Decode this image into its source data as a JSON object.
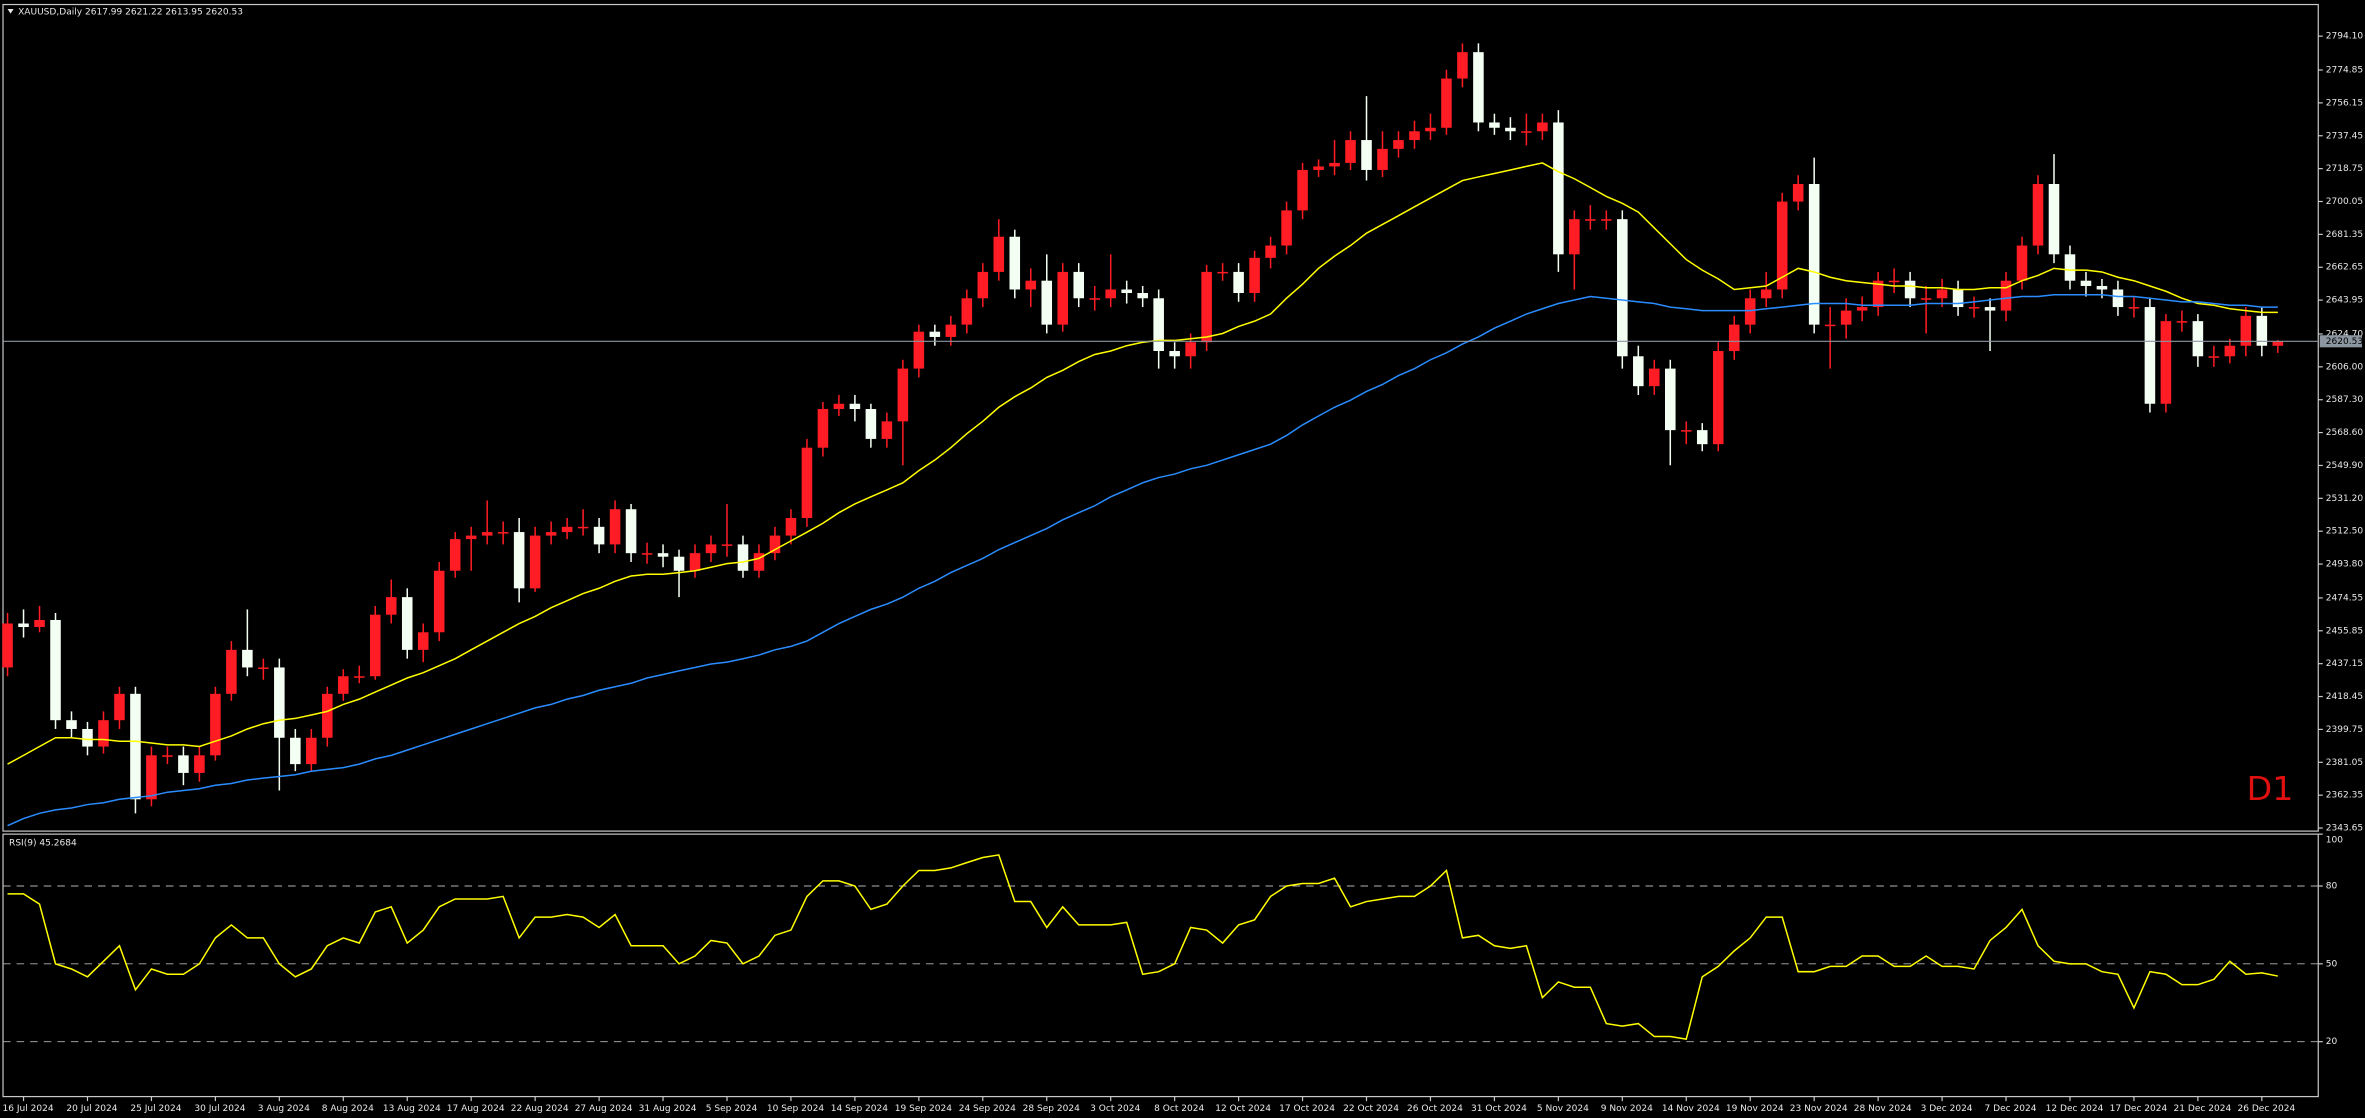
{
  "chart_data": [
    {
      "type": "candlestick",
      "title": "XAUUSD,Daily  2617.99 2621.22 2613.95 2620.53",
      "annotation": "D1",
      "categories": [
        null,
        "16 Jul 2024",
        null,
        null,
        null,
        "20 Jul 2024",
        null,
        null,
        null,
        "25 Jul 2024",
        null,
        null,
        null,
        "30 Jul 2024",
        null,
        null,
        null,
        "3 Aug 2024",
        null,
        null,
        null,
        "8 Aug 2024",
        null,
        null,
        null,
        "13 Aug 2024",
        null,
        null,
        null,
        "17 Aug 2024",
        null,
        null,
        null,
        "22 Aug 2024",
        null,
        null,
        null,
        "27 Aug 2024",
        null,
        null,
        null,
        "31 Aug 2024",
        null,
        null,
        null,
        "5 Sep 2024",
        null,
        null,
        null,
        "10 Sep 2024",
        null,
        null,
        null,
        "14 Sep 2024",
        null,
        null,
        null,
        "19 Sep 2024",
        null,
        null,
        null,
        "24 Sep 2024",
        null,
        null,
        null,
        "28 Sep 2024",
        null,
        null,
        null,
        "3 Oct 2024",
        null,
        null,
        null,
        "8 Oct 2024",
        null,
        null,
        null,
        "12 Oct 2024",
        null,
        null,
        null,
        "17 Oct 2024",
        null,
        null,
        null,
        "22 Oct 2024",
        null,
        null,
        null,
        "26 Oct 2024",
        null,
        null,
        null,
        "31 Oct 2024",
        null,
        null,
        null,
        "5 Nov 2024",
        null,
        null,
        null,
        "9 Nov 2024",
        null,
        null,
        null,
        "14 Nov 2024",
        null,
        null,
        null,
        "19 Nov 2024",
        null,
        null,
        null,
        "23 Nov 2024",
        null,
        null,
        null,
        "28 Nov 2024",
        null,
        null,
        null,
        "3 Dec 2024",
        null,
        null,
        null,
        "7 Dec 2024",
        null,
        null,
        null,
        "12 Dec 2024",
        null,
        null,
        null,
        "17 Dec 2024",
        null,
        null,
        null,
        "21 Dec 2024",
        null,
        null,
        null,
        "26 Dec 2024",
        null
      ],
      "open": [
        2435,
        2460,
        2458,
        2462,
        2405,
        2400,
        2390,
        2405,
        2420,
        2360,
        2385,
        2385,
        2375,
        2385,
        2420,
        2445,
        2435,
        2435,
        2395,
        2380,
        2395,
        2420,
        2430,
        2430,
        2465,
        2475,
        2445,
        2455,
        2490,
        2508,
        2510,
        2512,
        2512,
        2480,
        2510,
        2512,
        2515,
        2515,
        2505,
        2525,
        2500,
        2500,
        2498,
        2490,
        2500,
        2505,
        2505,
        2490,
        2500,
        2510,
        2520,
        2560,
        2582,
        2585,
        2582,
        2565,
        2575,
        2605,
        2626,
        2623,
        2630,
        2645,
        2660,
        2680,
        2650,
        2655,
        2630,
        2660,
        2645,
        2645,
        2650,
        2648,
        2645,
        2615,
        2612,
        2620,
        2660,
        2660,
        2648,
        2668,
        2675,
        2695,
        2718,
        2720,
        2722,
        2735,
        2718,
        2730,
        2735,
        2740,
        2742,
        2770,
        2785,
        2745,
        2742,
        2740,
        2740,
        2745,
        2670,
        2690,
        2690,
        2690,
        2612,
        2595,
        2605,
        2570,
        2570,
        2562,
        2615,
        2630,
        2645,
        2650,
        2700,
        2710,
        2630,
        2630,
        2638,
        2640,
        2655,
        2655,
        2645,
        2645,
        2650,
        2640,
        2640,
        2638,
        2655,
        2675,
        2710,
        2670,
        2655,
        2652,
        2650,
        2640,
        2640,
        2585,
        2632,
        2632,
        2612,
        2612,
        2618,
        2635,
        2617.99
      ],
      "high": [
        2466,
        2468,
        2470,
        2466,
        2410,
        2404,
        2410,
        2424,
        2424,
        2390,
        2390,
        2390,
        2390,
        2424,
        2450,
        2468,
        2440,
        2440,
        2400,
        2400,
        2424,
        2434,
        2436,
        2470,
        2485,
        2480,
        2460,
        2495,
        2512,
        2515,
        2530,
        2518,
        2520,
        2515,
        2518,
        2520,
        2525,
        2520,
        2530,
        2528,
        2506,
        2505,
        2502,
        2505,
        2510,
        2528,
        2510,
        2505,
        2515,
        2525,
        2565,
        2586,
        2590,
        2590,
        2585,
        2580,
        2610,
        2630,
        2630,
        2635,
        2650,
        2665,
        2690,
        2684,
        2662,
        2670,
        2665,
        2665,
        2652,
        2670,
        2655,
        2652,
        2650,
        2620,
        2625,
        2664,
        2665,
        2665,
        2672,
        2680,
        2700,
        2722,
        2724,
        2735,
        2740,
        2760,
        2740,
        2740,
        2746,
        2750,
        2775,
        2790,
        2790,
        2750,
        2748,
        2750,
        2750,
        2752,
        2695,
        2698,
        2695,
        2695,
        2618,
        2610,
        2610,
        2575,
        2574,
        2620,
        2635,
        2650,
        2660,
        2705,
        2715,
        2725,
        2640,
        2645,
        2646,
        2660,
        2662,
        2660,
        2652,
        2656,
        2655,
        2646,
        2645,
        2660,
        2680,
        2715,
        2727,
        2675,
        2660,
        2656,
        2655,
        2646,
        2645,
        2636,
        2638,
        2636,
        2618,
        2622,
        2640,
        2640,
        2621.22
      ],
      "low": [
        2430,
        2452,
        2455,
        2400,
        2395,
        2385,
        2386,
        2400,
        2352,
        2356,
        2380,
        2368,
        2370,
        2382,
        2416,
        2430,
        2428,
        2365,
        2376,
        2376,
        2390,
        2416,
        2426,
        2428,
        2460,
        2440,
        2438,
        2450,
        2486,
        2490,
        2505,
        2505,
        2472,
        2478,
        2505,
        2508,
        2510,
        2500,
        2500,
        2495,
        2494,
        2492,
        2475,
        2486,
        2495,
        2498,
        2486,
        2486,
        2496,
        2505,
        2515,
        2555,
        2578,
        2575,
        2560,
        2560,
        2550,
        2600,
        2618,
        2618,
        2625,
        2640,
        2655,
        2645,
        2640,
        2625,
        2626,
        2640,
        2638,
        2640,
        2642,
        2640,
        2605,
        2605,
        2605,
        2615,
        2655,
        2643,
        2643,
        2662,
        2670,
        2690,
        2714,
        2715,
        2718,
        2712,
        2714,
        2725,
        2730,
        2735,
        2738,
        2765,
        2740,
        2738,
        2735,
        2732,
        2735,
        2660,
        2650,
        2684,
        2684,
        2605,
        2590,
        2590,
        2550,
        2562,
        2558,
        2558,
        2610,
        2625,
        2640,
        2645,
        2695,
        2625,
        2605,
        2622,
        2632,
        2635,
        2648,
        2640,
        2625,
        2640,
        2635,
        2634,
        2615,
        2632,
        2650,
        2670,
        2665,
        2650,
        2646,
        2645,
        2635,
        2634,
        2580,
        2580,
        2626,
        2606,
        2606,
        2608,
        2612,
        2612,
        2613.95
      ],
      "close": [
        2460,
        2458,
        2462,
        2405,
        2400,
        2390,
        2405,
        2420,
        2360,
        2385,
        2385,
        2375,
        2385,
        2420,
        2445,
        2435,
        2435,
        2395,
        2380,
        2395,
        2420,
        2430,
        2430,
        2465,
        2475,
        2445,
        2455,
        2490,
        2508,
        2510,
        2512,
        2512,
        2480,
        2510,
        2512,
        2515,
        2515,
        2505,
        2525,
        2500,
        2500,
        2498,
        2490,
        2500,
        2505,
        2505,
        2490,
        2500,
        2510,
        2520,
        2560,
        2582,
        2585,
        2582,
        2565,
        2575,
        2605,
        2626,
        2623,
        2630,
        2645,
        2660,
        2680,
        2650,
        2655,
        2630,
        2660,
        2645,
        2645,
        2650,
        2648,
        2645,
        2615,
        2612,
        2620,
        2660,
        2660,
        2648,
        2668,
        2675,
        2695,
        2718,
        2720,
        2722,
        2735,
        2718,
        2730,
        2735,
        2740,
        2742,
        2770,
        2785,
        2745,
        2742,
        2740,
        2740,
        2745,
        2670,
        2690,
        2690,
        2690,
        2612,
        2595,
        2605,
        2570,
        2570,
        2562,
        2615,
        2630,
        2645,
        2650,
        2700,
        2710,
        2630,
        2630,
        2638,
        2640,
        2655,
        2655,
        2645,
        2645,
        2650,
        2640,
        2640,
        2638,
        2655,
        2675,
        2710,
        2670,
        2655,
        2652,
        2650,
        2640,
        2640,
        2585,
        2632,
        2632,
        2612,
        2612,
        2618,
        2635,
        2618,
        2620.53
      ],
      "up_color": "#ff1c24",
      "down_color": "#f4fff4",
      "lines": [
        {
          "color": "#ffff00",
          "values": [
            2380,
            2385,
            2390,
            2395,
            2395,
            2394,
            2394,
            2393,
            2393,
            2392,
            2391,
            2391,
            2390,
            2393,
            2396,
            2400,
            2403,
            2405,
            2406,
            2408,
            2410,
            2414,
            2417,
            2421,
            2425,
            2429,
            2432,
            2436,
            2440,
            2445,
            2450,
            2455,
            2460,
            2464,
            2469,
            2473,
            2477,
            2480,
            2484,
            2487,
            2488,
            2488,
            2489,
            2490,
            2492,
            2494,
            2495,
            2497,
            2502,
            2507,
            2512,
            2517,
            2523,
            2528,
            2532,
            2536,
            2540,
            2547,
            2553,
            2560,
            2568,
            2575,
            2583,
            2589,
            2594,
            2600,
            2604,
            2609,
            2613,
            2615,
            2618,
            2620,
            2621,
            2621,
            2622,
            2623,
            2625,
            2629,
            2632,
            2636,
            2645,
            2653,
            2662,
            2669,
            2675,
            2682,
            2687,
            2692,
            2697,
            2702,
            2707,
            2712,
            2714,
            2716,
            2718,
            2720,
            2722,
            2717,
            2713,
            2708,
            2703,
            2699,
            2694,
            2685,
            2676,
            2667,
            2661,
            2656,
            2650,
            2651,
            2652,
            2657,
            2662,
            2660,
            2657,
            2655,
            2654,
            2653,
            2652,
            2652,
            2651,
            2651,
            2650,
            2650,
            2651,
            2651,
            2655,
            2658,
            2662,
            2661,
            2661,
            2660,
            2657,
            2655,
            2652,
            2649,
            2645,
            2642,
            2641,
            2639,
            2638,
            2637,
            2637
          ]
        },
        {
          "color": "#2a8cff",
          "values": [
            2345,
            2349,
            2352,
            2354,
            2355,
            2357,
            2358,
            2360,
            2361,
            2362,
            2364,
            2365,
            2366,
            2368,
            2369,
            2371,
            2372,
            2373,
            2374,
            2376,
            2377,
            2378,
            2380,
            2383,
            2385,
            2388,
            2391,
            2394,
            2397,
            2400,
            2403,
            2406,
            2409,
            2412,
            2414,
            2417,
            2419,
            2422,
            2424,
            2426,
            2429,
            2431,
            2433,
            2435,
            2437,
            2438,
            2440,
            2442,
            2445,
            2447,
            2450,
            2455,
            2460,
            2464,
            2468,
            2471,
            2475,
            2480,
            2484,
            2489,
            2493,
            2497,
            2502,
            2506,
            2510,
            2514,
            2519,
            2523,
            2527,
            2532,
            2536,
            2540,
            2543,
            2545,
            2548,
            2550,
            2553,
            2556,
            2559,
            2562,
            2567,
            2573,
            2578,
            2583,
            2587,
            2592,
            2596,
            2601,
            2605,
            2610,
            2614,
            2619,
            2623,
            2628,
            2632,
            2636,
            2639,
            2642,
            2644,
            2646,
            2645,
            2644,
            2643,
            2642,
            2640,
            2639,
            2638,
            2638,
            2638,
            2638,
            2639,
            2640,
            2641,
            2642,
            2642,
            2642,
            2641,
            2641,
            2641,
            2641,
            2642,
            2642,
            2642,
            2643,
            2644,
            2645,
            2646,
            2646,
            2647,
            2647,
            2647,
            2647,
            2646,
            2646,
            2645,
            2644,
            2643,
            2643,
            2642,
            2641,
            2641,
            2640,
            2640
          ]
        }
      ],
      "price_line": {
        "value": 2620.53,
        "label": "2620.53"
      },
      "ylim": [
        2341.9,
        2812.1
      ],
      "yticks": [
        {
          "value": 2794.1,
          "label": "2794.10"
        },
        2774.85,
        2756.15,
        2737.45,
        2718.75,
        2700.05,
        2681.35,
        2662.65,
        2643.95,
        {
          "value": 2624.7,
          "label": "2624.70"
        },
        {
          "value": 2606,
          "label": "2606.00"
        },
        {
          "value": 2587.3,
          "label": "2587.30"
        },
        {
          "value": 2568.6,
          "label": "2568.60"
        },
        {
          "value": 2549.9,
          "label": "2549.90"
        },
        {
          "value": 2531.2,
          "label": "2531.20"
        },
        {
          "value": 2512.5,
          "label": "2512.50"
        },
        {
          "value": 2493.8,
          "label": "2493.80"
        },
        2474.55,
        2455.85,
        2437.15,
        2418.45,
        2399.75,
        2381.05,
        2362.35,
        2343.65
      ]
    },
    {
      "type": "line",
      "title": "RSI(9) 45.2684",
      "color": "#ffff00",
      "values": [
        77,
        77,
        73,
        50,
        48,
        45,
        51,
        57,
        40,
        48,
        46,
        46,
        50,
        60,
        65,
        60,
        60,
        50,
        45,
        48,
        57,
        60,
        58,
        70,
        72,
        58,
        63,
        72,
        75,
        75,
        75,
        76,
        60,
        68,
        68,
        69,
        68,
        64,
        69,
        57,
        57,
        57,
        50,
        53,
        59,
        58,
        50,
        53,
        61,
        63,
        76,
        82,
        82,
        80,
        71,
        73,
        80,
        86,
        86,
        87,
        89,
        91,
        92,
        74,
        74,
        64,
        72,
        65,
        65,
        65,
        66,
        46,
        47,
        50,
        64,
        63,
        58,
        65,
        67,
        76,
        80,
        81,
        81,
        83,
        72,
        74,
        75,
        76,
        76,
        80,
        86,
        60,
        61,
        57,
        56,
        57,
        37,
        43,
        41,
        41,
        27,
        26,
        27,
        22,
        22,
        21,
        45,
        49,
        55,
        60,
        68,
        68,
        47,
        47,
        49,
        49,
        53,
        53,
        49,
        49,
        53,
        49,
        49,
        48,
        59,
        64,
        71,
        57,
        51,
        50,
        50,
        47,
        46,
        33,
        47,
        46,
        42,
        42,
        44,
        51,
        46,
        46.5,
        45.27
      ],
      "ylim": [
        0,
        100
      ],
      "yticks": [
        20,
        50,
        80,
        100
      ],
      "levels": [
        20,
        50,
        80
      ]
    }
  ]
}
